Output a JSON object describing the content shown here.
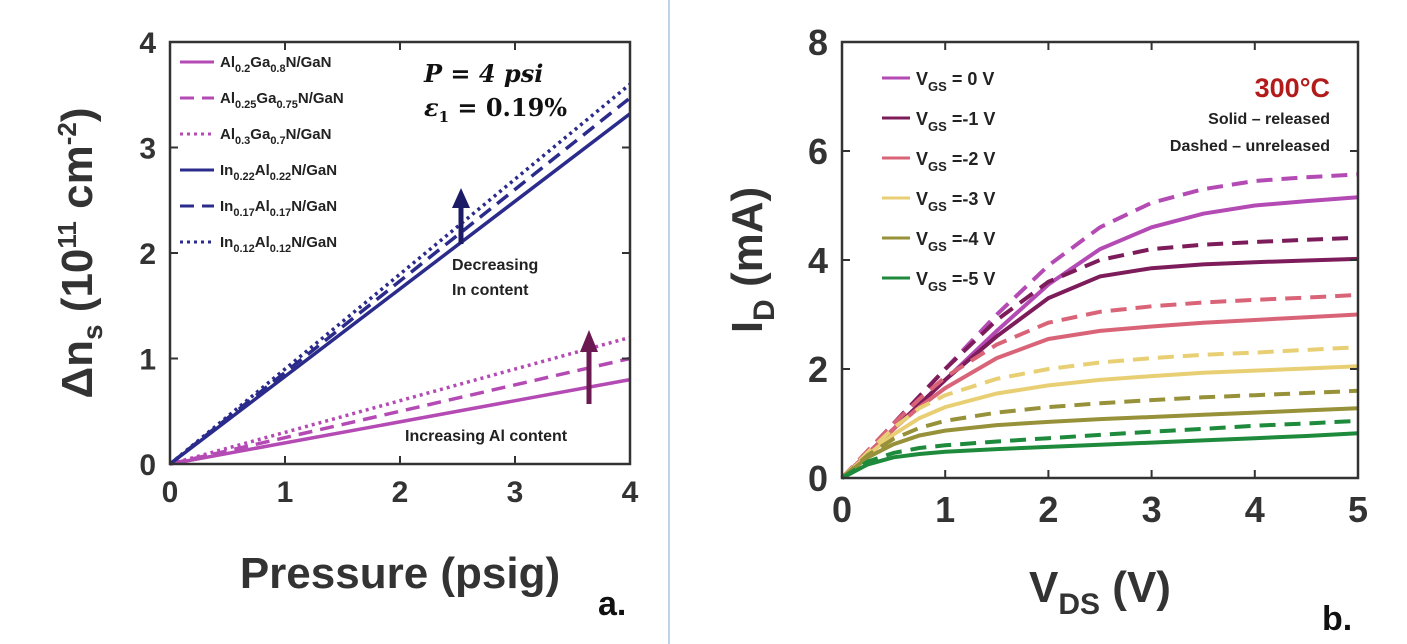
{
  "chart_data": [
    {
      "type": "line",
      "panel_label": "a.",
      "xlabel": "Pressure (psig)",
      "ylabel": {
        "main": "Δn",
        "sub": "s",
        "unit_open": " (10",
        "exp": "11",
        "unit_mid": " cm",
        "exp2": "-2",
        "unit_close": ")"
      },
      "xlim": [
        0,
        4
      ],
      "ylim": [
        0,
        4
      ],
      "xticks": [
        "0",
        "1",
        "2",
        "3",
        "4"
      ],
      "yticks": [
        "0",
        "1",
        "2",
        "3",
        "4"
      ],
      "legend_position": "top-left",
      "annotation_box": {
        "line1": "P = 4 psi",
        "line2_var": "ε",
        "line2_sub": "1",
        "line2_val": " = 0.19%"
      },
      "annotations": [
        "Decreasing",
        "In content",
        "Increasing Al content"
      ],
      "series": [
        {
          "name": "Al0.2Ga0.8N/GaN",
          "parts": [
            [
              "Al",
              ""
            ],
            [
              "0.2",
              "s"
            ],
            [
              "Ga",
              ""
            ],
            [
              "0.8",
              "s"
            ],
            [
              "N/GaN",
              ""
            ]
          ],
          "style": "solid",
          "color": "#b44ab4",
          "x": [
            0,
            4
          ],
          "y": [
            0,
            0.8
          ]
        },
        {
          "name": "Al0.25Ga0.75N/GaN",
          "parts": [
            [
              "Al",
              ""
            ],
            [
              "0.25",
              "s"
            ],
            [
              "Ga",
              ""
            ],
            [
              "0.75",
              "s"
            ],
            [
              "N/GaN",
              ""
            ]
          ],
          "style": "dashed",
          "color": "#b44ab4",
          "x": [
            0,
            4
          ],
          "y": [
            0,
            1.0
          ]
        },
        {
          "name": "Al0.3Ga0.7N/GaN",
          "parts": [
            [
              "Al",
              ""
            ],
            [
              "0.3",
              "s"
            ],
            [
              "Ga",
              ""
            ],
            [
              "0.7",
              "s"
            ],
            [
              "N/GaN",
              ""
            ]
          ],
          "style": "dotted",
          "color": "#b44ab4",
          "x": [
            0,
            4
          ],
          "y": [
            0,
            1.2
          ]
        },
        {
          "name": "In0.22Al0.22N/GaN",
          "parts": [
            [
              "In",
              ""
            ],
            [
              "0.22",
              "s"
            ],
            [
              "Al",
              ""
            ],
            [
              "0.22",
              "s"
            ],
            [
              "N/GaN",
              ""
            ]
          ],
          "style": "solid",
          "color": "#2b2b8c",
          "x": [
            0,
            4
          ],
          "y": [
            0,
            3.32
          ]
        },
        {
          "name": "In0.17Al0.17N/GaN",
          "parts": [
            [
              "In",
              ""
            ],
            [
              "0.17",
              "s"
            ],
            [
              "Al",
              ""
            ],
            [
              "0.17",
              "s"
            ],
            [
              "N/GaN",
              ""
            ]
          ],
          "style": "dashed",
          "color": "#2b2b8c",
          "x": [
            0,
            4
          ],
          "y": [
            0,
            3.47
          ]
        },
        {
          "name": "In0.12Al0.12N/GaN",
          "parts": [
            [
              "In",
              ""
            ],
            [
              "0.12",
              "s"
            ],
            [
              "Al",
              ""
            ],
            [
              "0.12",
              "s"
            ],
            [
              "N/GaN",
              ""
            ]
          ],
          "style": "dotted",
          "color": "#2b2b8c",
          "x": [
            0,
            4
          ],
          "y": [
            0,
            3.6
          ]
        }
      ]
    },
    {
      "type": "line",
      "panel_label": "b.",
      "xlabel": {
        "main": "V",
        "sub": "DS",
        "unit": " (V)"
      },
      "ylabel": {
        "main": "I",
        "sub": "D",
        "unit": " (mA)"
      },
      "xlim": [
        0,
        5
      ],
      "ylim": [
        0,
        8
      ],
      "xticks": [
        "0",
        "1",
        "2",
        "3",
        "4",
        "5"
      ],
      "yticks": [
        "0",
        "2",
        "4",
        "6",
        "8"
      ],
      "legend_position": "top-left",
      "temperature_label": "300°C",
      "notes": [
        "Solid – released",
        "Dashed – unreleased"
      ],
      "x": [
        0,
        0.25,
        0.5,
        0.75,
        1,
        1.5,
        2,
        2.5,
        3,
        3.5,
        4,
        4.5,
        5
      ],
      "series": [
        {
          "name": "VGS = 0 V",
          "label_main": "V",
          "label_sub": "GS",
          "label_rest": " = 0 V",
          "color": "#b44ab4",
          "solid": [
            0,
            0.45,
            0.9,
            1.35,
            1.8,
            2.7,
            3.55,
            4.2,
            4.6,
            4.85,
            5.0,
            5.08,
            5.15
          ],
          "dashed": [
            0,
            0.5,
            1.0,
            1.5,
            2.0,
            3.0,
            3.9,
            4.6,
            5.05,
            5.3,
            5.45,
            5.52,
            5.57
          ]
        },
        {
          "name": "VGS =-1 V",
          "label_main": "V",
          "label_sub": "GS",
          "label_rest": " =-1 V",
          "color": "#7d1c5a",
          "solid": [
            0,
            0.45,
            0.9,
            1.35,
            1.8,
            2.6,
            3.3,
            3.7,
            3.85,
            3.92,
            3.96,
            3.99,
            4.02
          ],
          "dashed": [
            0,
            0.5,
            1.0,
            1.5,
            2.0,
            2.9,
            3.6,
            4.0,
            4.2,
            4.28,
            4.33,
            4.37,
            4.41
          ]
        },
        {
          "name": "VGS =-2 V",
          "label_main": "V",
          "label_sub": "GS",
          "label_rest": " =-2 V",
          "color": "#d96478",
          "solid": [
            0,
            0.45,
            0.9,
            1.3,
            1.65,
            2.2,
            2.55,
            2.7,
            2.78,
            2.85,
            2.9,
            2.95,
            3.0
          ],
          "dashed": [
            0,
            0.5,
            1.0,
            1.45,
            1.85,
            2.45,
            2.85,
            3.05,
            3.15,
            3.22,
            3.27,
            3.31,
            3.36
          ]
        },
        {
          "name": "VGS =-3 V",
          "label_main": "V",
          "label_sub": "GS",
          "label_rest": " =-3 V",
          "color": "#e8cf74",
          "solid": [
            0,
            0.42,
            0.8,
            1.1,
            1.3,
            1.55,
            1.7,
            1.8,
            1.87,
            1.93,
            1.97,
            2.01,
            2.05
          ],
          "dashed": [
            0,
            0.47,
            0.92,
            1.28,
            1.52,
            1.82,
            2.0,
            2.12,
            2.2,
            2.26,
            2.3,
            2.35,
            2.4
          ]
        },
        {
          "name": "VGS =-4 V",
          "label_main": "V",
          "label_sub": "GS",
          "label_rest": " =-4 V",
          "color": "#97913a",
          "solid": [
            0,
            0.38,
            0.62,
            0.78,
            0.87,
            0.97,
            1.03,
            1.08,
            1.12,
            1.16,
            1.2,
            1.24,
            1.28
          ],
          "dashed": [
            0,
            0.42,
            0.72,
            0.92,
            1.05,
            1.2,
            1.3,
            1.37,
            1.43,
            1.48,
            1.52,
            1.56,
            1.6
          ]
        },
        {
          "name": "VGS =-5 V",
          "label_main": "V",
          "label_sub": "GS",
          "label_rest": " =-5 V",
          "color": "#1e8a3c",
          "solid": [
            0,
            0.25,
            0.38,
            0.44,
            0.48,
            0.53,
            0.57,
            0.61,
            0.65,
            0.69,
            0.73,
            0.77,
            0.82
          ],
          "dashed": [
            0,
            0.3,
            0.46,
            0.55,
            0.6,
            0.67,
            0.73,
            0.79,
            0.85,
            0.9,
            0.96,
            1.0,
            1.05
          ]
        }
      ]
    }
  ]
}
